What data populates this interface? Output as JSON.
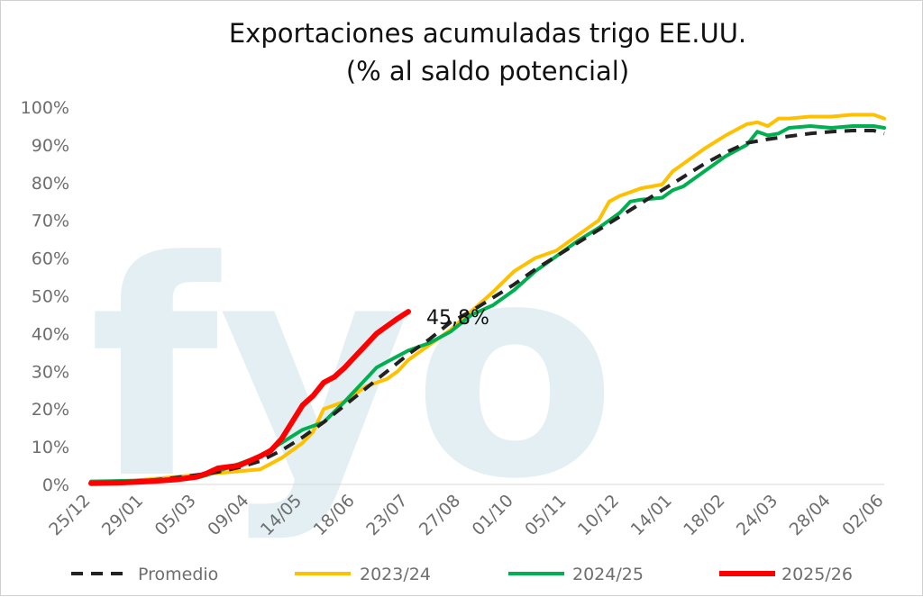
{
  "chart_data": {
    "type": "line",
    "title": "Exportaciones acumuladas trigo EE.UU.",
    "subtitle": "(% al saldo potencial)",
    "xlabel": "",
    "ylabel": "",
    "watermark": "fyo",
    "ylim": [
      0,
      100
    ],
    "y_ticks": [
      "0%",
      "10%",
      "20%",
      "30%",
      "40%",
      "50%",
      "60%",
      "70%",
      "80%",
      "90%",
      "100%"
    ],
    "x_ticks": [
      "25/12",
      "29/01",
      "05/03",
      "09/04",
      "14/05",
      "18/06",
      "23/07",
      "27/08",
      "01/10",
      "05/11",
      "10/12",
      "14/01",
      "18/02",
      "24/03",
      "28/04",
      "02/06"
    ],
    "x_range_weeks": [
      0,
      75
    ],
    "grid": false,
    "legend_position": "bottom",
    "colors": {
      "promedio": "#222222",
      "s2324": "#ffc000",
      "s2425": "#00b050",
      "s2526": "#ff0000",
      "watermark": "#e3eff3"
    },
    "annotation": {
      "text": "45,8%",
      "x": 30,
      "y": 45.8
    },
    "series": [
      {
        "name": "Promedio",
        "style": "dashed",
        "x": [
          0,
          2,
          4,
          6,
          8,
          10,
          12,
          14,
          16,
          18,
          20,
          22,
          24,
          26,
          28,
          30,
          32,
          34,
          36,
          38,
          40,
          42,
          44,
          46,
          48,
          50,
          52,
          54,
          56,
          58,
          60,
          62,
          64,
          66,
          68,
          70,
          72,
          74,
          75
        ],
        "values": [
          0.3,
          0.5,
          0.8,
          1.2,
          1.8,
          2.5,
          3.3,
          4.5,
          6.2,
          9,
          12.5,
          16.5,
          21,
          25.5,
          30,
          34.5,
          38.5,
          43,
          46,
          49.5,
          53,
          57,
          60.5,
          64,
          67.5,
          71,
          74.5,
          78,
          81.5,
          85,
          88,
          90.5,
          91.5,
          92.3,
          93,
          93.5,
          93.8,
          93.8,
          93
        ]
      },
      {
        "name": "2023/24",
        "style": "solid",
        "x": [
          0,
          2,
          4,
          6,
          8,
          10,
          12,
          14,
          16,
          18,
          20,
          21,
          22,
          23,
          24,
          26,
          28,
          29,
          30,
          31,
          32,
          33,
          34,
          36,
          38,
          40,
          42,
          44,
          46,
          48,
          49,
          50,
          52,
          54,
          55,
          56,
          58,
          60,
          62,
          63,
          64,
          65,
          66,
          68,
          70,
          72,
          74,
          75
        ],
        "values": [
          0.5,
          0.7,
          1.0,
          1.5,
          2.0,
          2.5,
          3.0,
          3.5,
          4.0,
          7.0,
          11.0,
          14.0,
          20.0,
          21.0,
          22.0,
          26.0,
          28.0,
          30.0,
          33.0,
          35.0,
          37.0,
          39.0,
          41.0,
          46.0,
          51.0,
          56.5,
          60.0,
          62.0,
          66.0,
          70.0,
          75.0,
          76.5,
          78.5,
          79.5,
          83.0,
          85.0,
          89.0,
          92.5,
          95.5,
          96.0,
          95.0,
          97.0,
          97.0,
          97.5,
          97.5,
          98.0,
          98.0,
          97.0
        ]
      },
      {
        "name": "2024/25",
        "style": "solid",
        "x": [
          0,
          2,
          4,
          6,
          8,
          10,
          11,
          12,
          14,
          16,
          18,
          20,
          22,
          24,
          26,
          27,
          28,
          30,
          32,
          34,
          36,
          38,
          40,
          42,
          44,
          46,
          48,
          50,
          51,
          52,
          54,
          55,
          56,
          58,
          60,
          62,
          63,
          64,
          65,
          66,
          68,
          70,
          72,
          74,
          75
        ],
        "values": [
          0.8,
          0.9,
          1.0,
          1.2,
          1.5,
          1.8,
          2.5,
          3.5,
          5.5,
          7.5,
          11.0,
          14.5,
          16.5,
          22.0,
          28.0,
          31.0,
          32.5,
          35.5,
          37.5,
          40.5,
          45.0,
          47.5,
          51.5,
          56.5,
          60.5,
          64.5,
          68.0,
          72.0,
          75.0,
          75.5,
          76.0,
          78.0,
          79.0,
          83.0,
          87.0,
          90.0,
          93.5,
          92.5,
          93.0,
          94.5,
          95.0,
          94.5,
          95.0,
          95.0,
          94.5
        ]
      },
      {
        "name": "2025/26",
        "style": "solid",
        "x": [
          0,
          2,
          4,
          6,
          8,
          10,
          11,
          12,
          14,
          16,
          17,
          18,
          19,
          20,
          21,
          22,
          23,
          24,
          25,
          26,
          27,
          28,
          29,
          30
        ],
        "values": [
          0.3,
          0.4,
          0.6,
          0.9,
          1.3,
          2.0,
          3.0,
          4.3,
          5.0,
          7.5,
          9.0,
          12.0,
          16.5,
          21.0,
          23.5,
          27.0,
          28.5,
          31.0,
          34.0,
          37.0,
          40.0,
          42.0,
          44.0,
          45.8
        ]
      }
    ]
  }
}
